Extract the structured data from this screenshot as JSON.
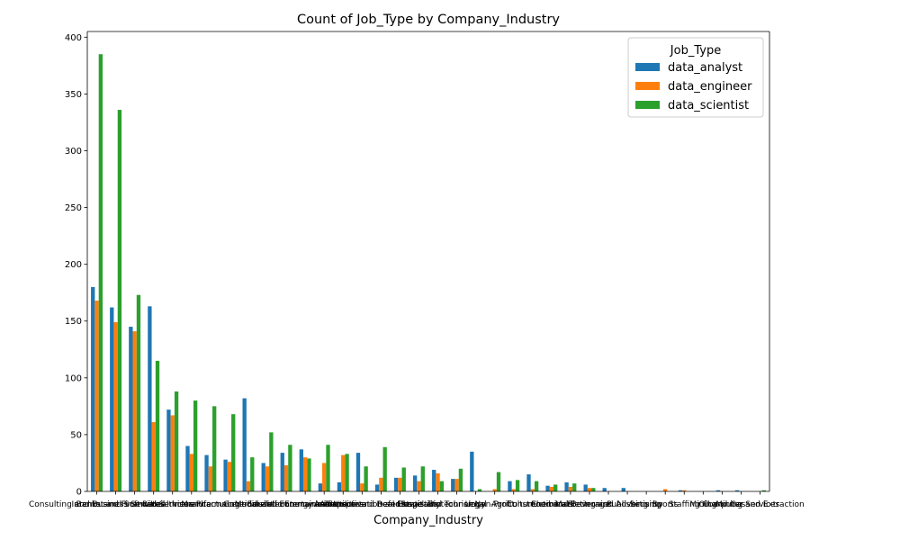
{
  "chart_data": {
    "type": "bar",
    "title": "Count of Job_Type by Company_Industry",
    "xlabel": "Company_Industry",
    "ylabel": "",
    "ylim": [
      0,
      405
    ],
    "yticks": [
      0,
      50,
      100,
      150,
      200,
      250,
      300,
      350,
      400
    ],
    "grid": false,
    "legend": {
      "title": "Job_Type",
      "placement": "top-right"
    },
    "categories": [
      "Consulting and Business Services",
      "Internet and Software",
      "Banks and Financial Services",
      "Retail",
      "Healthcare",
      "Insurance",
      "Manufacturing",
      "Pharmaceuticals",
      "Government",
      "Education",
      "Media and Entertainment",
      "Telecommunications",
      "Energy and Utilities",
      "Automotive",
      "Aerospace and Defense",
      "Transportation and Logistics",
      "Real Estate",
      "Hospitality",
      "Travel and Tourism",
      "Biotechnology",
      "Legal",
      "Non-Profit",
      "Agriculture",
      "Construction",
      "Chemicals",
      "Food and Beverage",
      "Electronics",
      "Marketing and Advertising",
      "Publishing",
      "Security",
      "Sports",
      "Staffing",
      "Mining",
      "Oil and Gas",
      "Computer Services",
      "Mining and Extraction"
    ],
    "series": [
      {
        "name": "data_analyst",
        "color": "#1f77b4",
        "values": [
          180,
          162,
          145,
          163,
          72,
          40,
          32,
          28,
          82,
          25,
          34,
          37,
          7,
          8,
          34,
          6,
          12,
          14,
          19,
          11,
          35,
          0,
          9,
          15,
          5,
          8,
          6,
          3,
          3,
          0,
          0,
          1,
          0,
          1,
          1,
          0
        ]
      },
      {
        "name": "data_engineer",
        "color": "#ff7f0e",
        "values": [
          168,
          149,
          141,
          61,
          67,
          33,
          22,
          26,
          9,
          22,
          23,
          30,
          25,
          32,
          7,
          12,
          12,
          9,
          16,
          11,
          0,
          2,
          2,
          2,
          4,
          4,
          3,
          0,
          0,
          0,
          2,
          1,
          0,
          0,
          0,
          0
        ]
      },
      {
        "name": "data_scientist",
        "color": "#2ca02c",
        "values": [
          385,
          336,
          173,
          115,
          88,
          80,
          75,
          68,
          30,
          52,
          41,
          29,
          41,
          33,
          22,
          39,
          21,
          22,
          9,
          20,
          2,
          17,
          10,
          9,
          6,
          7,
          3,
          0,
          0,
          0,
          0,
          0,
          0,
          0,
          0,
          1
        ]
      }
    ]
  }
}
